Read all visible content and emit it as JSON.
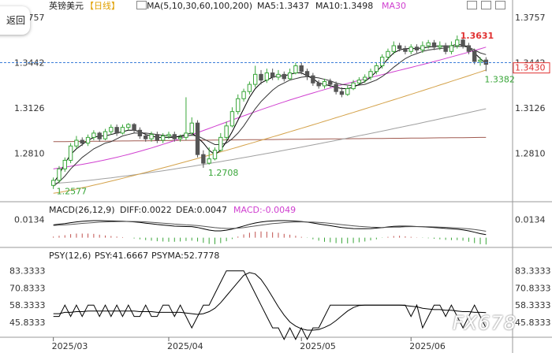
{
  "back_button": "返回",
  "header": {
    "symbol": "英镑美元",
    "period": "【日线】",
    "ma_label": "MA(5,10,30,60,100,200)",
    "ma5_label": "MA5:1.3437",
    "ma10_label": "MA10:1.3498",
    "ma30_label": "MA30"
  },
  "macd_header": {
    "name": "MACD(26,12,9)",
    "diff_label": "DIFF:0.0022",
    "dea_label": "DEA:0.0047",
    "macd_label": "MACD:-0.0049"
  },
  "psy_header": {
    "name": "PSY(12,6)",
    "psy_label": "PSY:41.6667",
    "psyma_label": "PSYMA:52.7778"
  },
  "watermark": "FX678",
  "colors": {
    "up": "#39a639",
    "down": "#555555",
    "ma5": "#000000",
    "ma10": "#000000",
    "ma30": "#d040d0",
    "ma60": "#d4a24a",
    "ma100": "#a0a0a0",
    "ma200": "#a05a50",
    "macd_bar": "#c0504d",
    "current_price": "#3b7dd8"
  },
  "chart_data": [
    {
      "type": "candlestick",
      "y_ticks": [
        "1.3757",
        "1.3442",
        "1.3126",
        "1.2810"
      ],
      "ylim": [
        1.2515,
        1.378
      ],
      "x_ticks": [
        "2025/03",
        "2025/04",
        "2025/05",
        "2025/06"
      ],
      "annotations": {
        "high": "1.3631",
        "low_march": "1.2577",
        "low_april": "1.2708",
        "last_low": "1.3382"
      },
      "current_price": "1.3430",
      "candles": [
        [
          1.2585,
          1.262,
          1.256,
          1.264
        ],
        [
          1.262,
          1.27,
          1.26,
          1.272
        ],
        [
          1.27,
          1.276,
          1.268,
          1.278
        ],
        [
          1.276,
          1.286,
          1.274,
          1.288
        ],
        [
          1.286,
          1.29,
          1.284,
          1.293
        ],
        [
          1.29,
          1.288,
          1.286,
          1.292
        ],
        [
          1.288,
          1.292,
          1.286,
          1.294
        ],
        [
          1.292,
          1.295,
          1.29,
          1.297
        ],
        [
          1.295,
          1.291,
          1.289,
          1.296
        ],
        [
          1.291,
          1.296,
          1.29,
          1.298
        ],
        [
          1.296,
          1.299,
          1.294,
          1.301
        ],
        [
          1.299,
          1.295,
          1.293,
          1.301
        ],
        [
          1.295,
          1.299,
          1.294,
          1.301
        ],
        [
          1.299,
          1.301,
          1.297,
          1.302
        ],
        [
          1.301,
          1.297,
          1.295,
          1.302
        ],
        [
          1.297,
          1.293,
          1.291,
          1.299
        ],
        [
          1.293,
          1.291,
          1.289,
          1.295
        ],
        [
          1.291,
          1.294,
          1.289,
          1.296
        ],
        [
          1.294,
          1.29,
          1.288,
          1.296
        ],
        [
          1.29,
          1.293,
          1.288,
          1.295
        ],
        [
          1.293,
          1.294,
          1.291,
          1.296
        ],
        [
          1.294,
          1.291,
          1.289,
          1.296
        ],
        [
          1.291,
          1.292,
          1.289,
          1.294
        ],
        [
          1.292,
          1.295,
          1.29,
          1.32
        ],
        [
          1.295,
          1.302,
          1.293,
          1.306
        ],
        [
          1.302,
          1.28,
          1.278,
          1.304
        ],
        [
          1.28,
          1.274,
          1.2708,
          1.283
        ],
        [
          1.274,
          1.277,
          1.273,
          1.285
        ],
        [
          1.277,
          1.283,
          1.276,
          1.285
        ],
        [
          1.283,
          1.292,
          1.282,
          1.295
        ],
        [
          1.292,
          1.3,
          1.29,
          1.303
        ],
        [
          1.3,
          1.31,
          1.299,
          1.313
        ],
        [
          1.31,
          1.319,
          1.308,
          1.322
        ],
        [
          1.319,
          1.324,
          1.317,
          1.326
        ],
        [
          1.324,
          1.329,
          1.322,
          1.331
        ],
        [
          1.329,
          1.336,
          1.327,
          1.342
        ],
        [
          1.336,
          1.332,
          1.329,
          1.339
        ],
        [
          1.332,
          1.337,
          1.33,
          1.34
        ],
        [
          1.337,
          1.334,
          1.332,
          1.34
        ],
        [
          1.334,
          1.336,
          1.332,
          1.339
        ],
        [
          1.336,
          1.333,
          1.331,
          1.338
        ],
        [
          1.333,
          1.337,
          1.332,
          1.34
        ],
        [
          1.337,
          1.342,
          1.336,
          1.344
        ],
        [
          1.342,
          1.338,
          1.336,
          1.344
        ],
        [
          1.338,
          1.335,
          1.332,
          1.34
        ],
        [
          1.335,
          1.33,
          1.328,
          1.337
        ],
        [
          1.33,
          1.328,
          1.326,
          1.332
        ],
        [
          1.328,
          1.331,
          1.326,
          1.333
        ],
        [
          1.331,
          1.329,
          1.327,
          1.333
        ],
        [
          1.329,
          1.324,
          1.322,
          1.331
        ],
        [
          1.324,
          1.322,
          1.32,
          1.327
        ],
        [
          1.322,
          1.326,
          1.321,
          1.328
        ],
        [
          1.326,
          1.33,
          1.325,
          1.332
        ],
        [
          1.33,
          1.332,
          1.329,
          1.334
        ],
        [
          1.332,
          1.334,
          1.33,
          1.336
        ],
        [
          1.334,
          1.338,
          1.332,
          1.34
        ],
        [
          1.338,
          1.342,
          1.336,
          1.344
        ],
        [
          1.342,
          1.348,
          1.34,
          1.35
        ],
        [
          1.348,
          1.352,
          1.346,
          1.354
        ],
        [
          1.352,
          1.356,
          1.35,
          1.359
        ],
        [
          1.356,
          1.354,
          1.352,
          1.358
        ],
        [
          1.354,
          1.352,
          1.35,
          1.356
        ],
        [
          1.352,
          1.355,
          1.35,
          1.357
        ],
        [
          1.355,
          1.353,
          1.351,
          1.357
        ],
        [
          1.353,
          1.356,
          1.351,
          1.359
        ],
        [
          1.356,
          1.358,
          1.354,
          1.36
        ],
        [
          1.358,
          1.355,
          1.353,
          1.36
        ],
        [
          1.355,
          1.356,
          1.353,
          1.359
        ],
        [
          1.356,
          1.352,
          1.35,
          1.358
        ],
        [
          1.352,
          1.356,
          1.35,
          1.359
        ],
        [
          1.356,
          1.36,
          1.354,
          1.3631
        ],
        [
          1.36,
          1.356,
          1.354,
          1.361
        ],
        [
          1.356,
          1.352,
          1.35,
          1.358
        ],
        [
          1.352,
          1.345,
          1.343,
          1.354
        ],
        [
          1.345,
          1.346,
          1.342,
          1.348
        ],
        [
          1.346,
          1.343,
          1.3382,
          1.348
        ]
      ],
      "ma": {
        "ma5": [
          1.26,
          1.266,
          1.274,
          1.28,
          1.284,
          1.287,
          1.29,
          1.292,
          1.293,
          1.293,
          1.294,
          1.295,
          1.296,
          1.297,
          1.297,
          1.296,
          1.294,
          1.293,
          1.292,
          1.292,
          1.292,
          1.292,
          1.293,
          1.294,
          1.295,
          1.292,
          1.288,
          1.283,
          1.28,
          1.283,
          1.289,
          1.296,
          1.304,
          1.312,
          1.32,
          1.326,
          1.33,
          1.332,
          1.334,
          1.335,
          1.335,
          1.336,
          1.337,
          1.337,
          1.335,
          1.333,
          1.33,
          1.329,
          1.328,
          1.327,
          1.326,
          1.326,
          1.327,
          1.329,
          1.331,
          1.334,
          1.338,
          1.342,
          1.347,
          1.351,
          1.353,
          1.354,
          1.354,
          1.354,
          1.3545,
          1.355,
          1.3555,
          1.356,
          1.3555,
          1.356,
          1.357,
          1.3565,
          1.355,
          1.351,
          1.347,
          1.3437
        ],
        "ma10": [
          1.258,
          1.261,
          1.265,
          1.27,
          1.274,
          1.278,
          1.281,
          1.284,
          1.286,
          1.288,
          1.289,
          1.291,
          1.293,
          1.294,
          1.295,
          1.295,
          1.295,
          1.2945,
          1.294,
          1.2935,
          1.293,
          1.2925,
          1.2925,
          1.293,
          1.2935,
          1.293,
          1.291,
          1.289,
          1.287,
          1.287,
          1.288,
          1.291,
          1.295,
          1.3,
          1.306,
          1.312,
          1.317,
          1.321,
          1.325,
          1.328,
          1.33,
          1.332,
          1.333,
          1.334,
          1.3345,
          1.334,
          1.3335,
          1.3325,
          1.3315,
          1.33,
          1.329,
          1.3285,
          1.328,
          1.3285,
          1.329,
          1.3305,
          1.332,
          1.3345,
          1.3375,
          1.341,
          1.344,
          1.347,
          1.349,
          1.3505,
          1.352,
          1.353,
          1.3535,
          1.354,
          1.3545,
          1.355,
          1.3555,
          1.3555,
          1.355,
          1.353,
          1.351,
          1.3498
        ]
      },
      "macd": {
        "dif": [
          0.0094,
          0.0099,
          0.0103,
          0.011,
          0.0116,
          0.012,
          0.0123,
          0.0125,
          0.0125,
          0.0124,
          0.0123,
          0.0122,
          0.0121,
          0.0119,
          0.0116,
          0.0112,
          0.0107,
          0.0102,
          0.0097,
          0.0093,
          0.0089,
          0.0085,
          0.0083,
          0.0082,
          0.0081,
          0.0075,
          0.0065,
          0.0056,
          0.005,
          0.005,
          0.0055,
          0.0063,
          0.0074,
          0.0086,
          0.0098,
          0.0108,
          0.0115,
          0.012,
          0.0123,
          0.0125,
          0.0125,
          0.0124,
          0.0122,
          0.0119,
          0.0114,
          0.0108,
          0.0101,
          0.0094,
          0.0088,
          0.0081,
          0.0075,
          0.007,
          0.0067,
          0.0066,
          0.0066,
          0.0067,
          0.007,
          0.0074,
          0.0079,
          0.0083,
          0.0085,
          0.0085,
          0.0084,
          0.0082,
          0.008,
          0.0078,
          0.0075,
          0.0072,
          0.0068,
          0.0065,
          0.0062,
          0.0057,
          0.005,
          0.004,
          0.003,
          0.0022
        ],
        "dea": [
          0.009,
          0.0092,
          0.0094,
          0.0097,
          0.0101,
          0.0105,
          0.0108,
          0.0111,
          0.0114,
          0.0116,
          0.0117,
          0.0118,
          0.0119,
          0.0119,
          0.0119,
          0.0118,
          0.0116,
          0.0113,
          0.011,
          0.0107,
          0.0104,
          0.01,
          0.0097,
          0.0094,
          0.0092,
          0.0089,
          0.0084,
          0.0079,
          0.0074,
          0.007,
          0.0068,
          0.0068,
          0.007,
          0.0074,
          0.008,
          0.0086,
          0.0092,
          0.0098,
          0.0103,
          0.0107,
          0.0111,
          0.0113,
          0.0115,
          0.0116,
          0.0115,
          0.0114,
          0.0112,
          0.0109,
          0.0105,
          0.0101,
          0.0096,
          0.0091,
          0.0087,
          0.0083,
          0.008,
          0.0077,
          0.0076,
          0.0075,
          0.0076,
          0.0077,
          0.0078,
          0.008,
          0.0081,
          0.0081,
          0.0081,
          0.008,
          0.0079,
          0.0078,
          0.0076,
          0.0074,
          0.0071,
          0.0068,
          0.0065,
          0.006,
          0.0054,
          0.0047
        ]
      },
      "psy": {
        "y_ticks": [
          "83.3333",
          "70.8333",
          "58.3333",
          "45.8333"
        ],
        "ylim": [
          36,
          90
        ],
        "psy": [
          50.0,
          50.0,
          58.3,
          50.0,
          58.3,
          50.0,
          58.3,
          58.3,
          50.0,
          58.3,
          50.0,
          58.3,
          50.0,
          58.3,
          50.0,
          50.0,
          58.3,
          50.0,
          50.0,
          58.3,
          58.3,
          50.0,
          58.3,
          50.0,
          41.7,
          50.0,
          58.3,
          58.3,
          66.7,
          75.0,
          83.3,
          83.3,
          83.3,
          83.3,
          75.0,
          66.7,
          58.3,
          50.0,
          41.7,
          41.7,
          33.3,
          41.7,
          33.3,
          41.7,
          33.3,
          41.7,
          41.7,
          50.0,
          58.3,
          58.3,
          58.3,
          58.3,
          58.3,
          58.3,
          58.3,
          58.3,
          58.3,
          58.3,
          58.3,
          58.3,
          58.3,
          58.3,
          50.0,
          58.3,
          41.7,
          50.0,
          58.3,
          58.3,
          50.0,
          58.3,
          50.0,
          41.7,
          50.0,
          58.3,
          50.0,
          41.7
        ],
        "psyma": [
          52.0,
          52.0,
          53.0,
          53.0,
          53.5,
          53.5,
          54.0,
          54.0,
          54.0,
          54.0,
          54.0,
          54.0,
          54.0,
          54.0,
          54.0,
          53.5,
          53.5,
          53.5,
          53.0,
          53.0,
          53.0,
          53.0,
          53.0,
          52.5,
          52.0,
          51.5,
          52.0,
          53.5,
          56.0,
          60.0,
          65.0,
          70.0,
          75.0,
          80.0,
          82.0,
          81.0,
          77.0,
          71.0,
          64.0,
          57.0,
          51.0,
          46.0,
          43.0,
          41.0,
          40.0,
          40.0,
          40.5,
          42.0,
          44.0,
          47.0,
          50.5,
          54.0,
          56.5,
          58.0,
          58.3,
          58.3,
          58.3,
          58.3,
          58.3,
          58.3,
          58.3,
          58.0,
          57.5,
          57.0,
          56.0,
          55.5,
          55.0,
          55.0,
          54.5,
          54.5,
          54.0,
          53.5,
          53.5,
          53.0,
          53.0,
          52.8
        ]
      }
    }
  ]
}
